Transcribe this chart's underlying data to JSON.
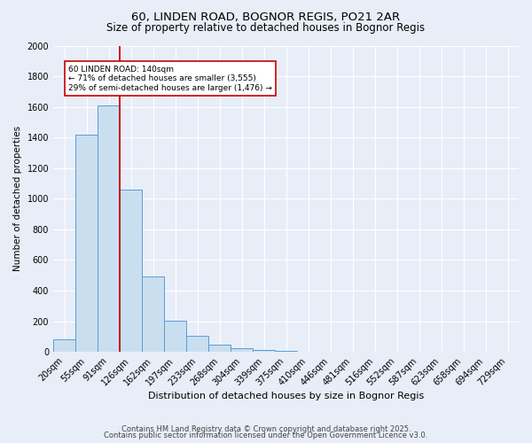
{
  "title1": "60, LINDEN ROAD, BOGNOR REGIS, PO21 2AR",
  "title2": "Size of property relative to detached houses in Bognor Regis",
  "xlabel": "Distribution of detached houses by size in Bognor Regis",
  "ylabel": "Number of detached properties",
  "categories": [
    "20sqm",
    "55sqm",
    "91sqm",
    "126sqm",
    "162sqm",
    "197sqm",
    "233sqm",
    "268sqm",
    "304sqm",
    "339sqm",
    "375sqm",
    "410sqm",
    "446sqm",
    "481sqm",
    "516sqm",
    "552sqm",
    "587sqm",
    "623sqm",
    "658sqm",
    "694sqm",
    "729sqm"
  ],
  "values": [
    80,
    1420,
    1610,
    1060,
    490,
    205,
    105,
    45,
    25,
    12,
    8,
    0,
    0,
    0,
    0,
    0,
    0,
    0,
    0,
    0,
    0
  ],
  "bar_color": "#c9dff0",
  "bar_edge_color": "#5b9bd5",
  "vline_x_idx": 3,
  "vline_color": "#cc0000",
  "annotation_line1": "60 LINDEN ROAD: 140sqm",
  "annotation_line2": "← 71% of detached houses are smaller (3,555)",
  "annotation_line3": "29% of semi-detached houses are larger (1,476) →",
  "annotation_box_color": "#ffffff",
  "annotation_box_edge": "#cc0000",
  "ylim": [
    0,
    2000
  ],
  "yticks": [
    0,
    200,
    400,
    600,
    800,
    1000,
    1200,
    1400,
    1600,
    1800,
    2000
  ],
  "background_color": "#e8eef8",
  "grid_color": "#ffffff",
  "footer1": "Contains HM Land Registry data © Crown copyright and database right 2025.",
  "footer2": "Contains public sector information licensed under the Open Government Licence v3.0.",
  "title1_fontsize": 9.5,
  "title2_fontsize": 8.5,
  "xlabel_fontsize": 8,
  "ylabel_fontsize": 7.5,
  "tick_fontsize": 7,
  "annotation_fontsize": 6.5,
  "footer_fontsize": 6
}
